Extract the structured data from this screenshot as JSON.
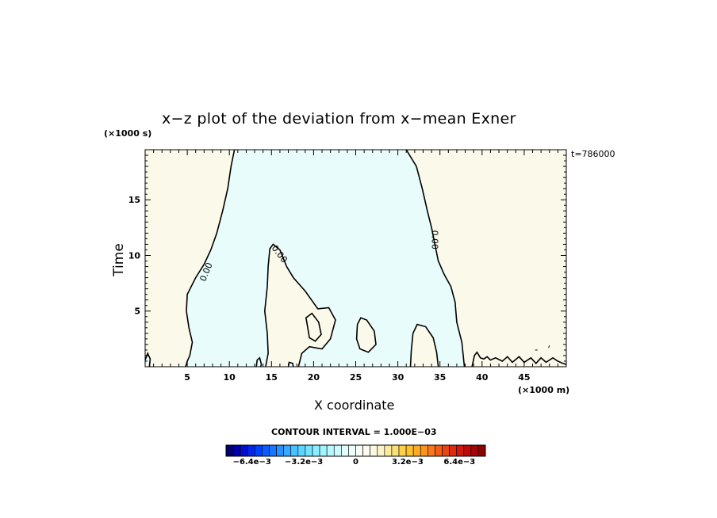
{
  "chart_data": {
    "type": "contour",
    "title": "x−z plot of the deviation from x−mean Exner",
    "xlabel": "X coordinate",
    "ylabel": "Time",
    "x_unit": "(×1000 m)",
    "y_unit": "(×1000 s)",
    "timestamp": "t=786000",
    "contour_interval_text": "CONTOUR INTERVAL = 1.000E−03",
    "xlim": [
      0,
      50
    ],
    "ylim": [
      0,
      19.5
    ],
    "x_ticks": [
      5,
      10,
      15,
      20,
      25,
      30,
      35,
      40,
      45
    ],
    "y_ticks": [
      5,
      10,
      15
    ],
    "contour_label": "0.00",
    "regions": {
      "positive_color": "#fbf9ea",
      "negative_color": "#e8fcfc"
    },
    "colorbar": {
      "min": -0.008,
      "max": 0.008,
      "colors": [
        "#00007a",
        "#0000a8",
        "#0010d0",
        "#0028ec",
        "#0040ff",
        "#0a5cff",
        "#1a78ff",
        "#2a92ff",
        "#3aaaff",
        "#4ac2ff",
        "#5cd6ff",
        "#72e4ff",
        "#8aeeff",
        "#a2f4ff",
        "#baf8ff",
        "#cefafe",
        "#e0fcfc",
        "#ecfdfb",
        "#f6fcf6",
        "#fafaee",
        "#fbf8e2",
        "#fcf2c8",
        "#fcea9e",
        "#fce074",
        "#fcd24a",
        "#fcc030",
        "#fcaa28",
        "#fc9222",
        "#f8781e",
        "#f05e1a",
        "#e84416",
        "#de2c12",
        "#d0180e",
        "#bc0a0a",
        "#a20606",
        "#860404"
      ],
      "labels": [
        "−6.4e−3",
        "−3.2e−3",
        "0",
        "3.2e−3",
        "6.4e−3"
      ],
      "label_values": [
        -0.0064,
        -0.0032,
        0,
        0.0032,
        0.0064
      ]
    },
    "zero_contours": [
      [
        [
          10.6,
          19.5
        ],
        [
          10.2,
          18
        ],
        [
          9.8,
          16
        ],
        [
          9.2,
          14
        ],
        [
          8.5,
          12
        ],
        [
          7.8,
          10.5
        ],
        [
          7,
          9.2
        ],
        [
          6,
          8
        ],
        [
          5,
          6.5
        ],
        [
          4.9,
          5
        ],
        [
          5.2,
          3.5
        ],
        [
          5.6,
          2.2
        ],
        [
          5.3,
          1
        ],
        [
          5,
          0.5
        ],
        [
          4.8,
          0
        ]
      ],
      [
        [
          31,
          19.5
        ],
        [
          32.2,
          18
        ],
        [
          32.9,
          16
        ],
        [
          33.5,
          14
        ],
        [
          34,
          12.5
        ],
        [
          34.4,
          11
        ],
        [
          34.8,
          9.5
        ],
        [
          35.5,
          8.3
        ],
        [
          36.3,
          7.2
        ],
        [
          36.8,
          5.8
        ],
        [
          37,
          4
        ],
        [
          37.6,
          2.2
        ],
        [
          37.9,
          0
        ]
      ],
      [
        [
          14.3,
          0
        ],
        [
          14.6,
          1.2
        ],
        [
          14.5,
          3
        ],
        [
          14.2,
          5
        ],
        [
          14.5,
          7.2
        ],
        [
          14.6,
          9
        ],
        [
          14.8,
          10.6
        ],
        [
          15.2,
          11
        ],
        [
          16,
          10.5
        ],
        [
          16.8,
          9
        ],
        [
          17.6,
          8
        ],
        [
          19,
          6.8
        ],
        [
          20.5,
          5.2
        ],
        [
          21.8,
          5.3
        ],
        [
          22.6,
          4.2
        ],
        [
          22,
          2.5
        ],
        [
          21,
          1.6
        ],
        [
          19.5,
          1.8
        ],
        [
          18.6,
          1.2
        ],
        [
          18.2,
          0
        ]
      ],
      [
        [
          19.3,
          3.5
        ],
        [
          19.1,
          4.4
        ],
        [
          19.8,
          4.8
        ],
        [
          20.6,
          4
        ],
        [
          20.9,
          2.9
        ],
        [
          20.2,
          2.3
        ],
        [
          19.5,
          2.6
        ],
        [
          19.3,
          3.5
        ]
      ],
      [
        [
          25.2,
          3.8
        ],
        [
          25.6,
          4.4
        ],
        [
          26.3,
          4.2
        ],
        [
          27.2,
          3.2
        ],
        [
          27.4,
          2
        ],
        [
          26.5,
          1.3
        ],
        [
          25.5,
          1.6
        ],
        [
          25.1,
          2.5
        ],
        [
          25.2,
          3.8
        ]
      ],
      [
        [
          31.5,
          0
        ],
        [
          31.6,
          1.5
        ],
        [
          31.8,
          3
        ],
        [
          32.3,
          3.8
        ],
        [
          33.3,
          3.6
        ],
        [
          34.2,
          2.6
        ],
        [
          34.6,
          1.3
        ],
        [
          34.8,
          0
        ]
      ],
      [
        [
          0,
          0.6
        ],
        [
          0.3,
          1.2
        ],
        [
          0.6,
          0.7
        ],
        [
          0.5,
          0
        ]
      ],
      [
        [
          13.2,
          0
        ],
        [
          13.3,
          0.6
        ],
        [
          13.6,
          0.8
        ],
        [
          13.8,
          0.2
        ],
        [
          13.7,
          0
        ]
      ],
      [
        [
          17.0,
          0
        ],
        [
          17.1,
          0.4
        ],
        [
          17.5,
          0.3
        ],
        [
          17.6,
          0
        ]
      ],
      [
        [
          38.8,
          0
        ],
        [
          39.1,
          1.0
        ],
        [
          39.4,
          1.3
        ],
        [
          39.8,
          0.8
        ],
        [
          40.2,
          0.7
        ],
        [
          40.6,
          0.9
        ],
        [
          41.0,
          0.6
        ],
        [
          41.6,
          0.8
        ],
        [
          42.4,
          0.5
        ],
        [
          43.0,
          0.9
        ],
        [
          43.6,
          0.4
        ],
        [
          44.4,
          0.9
        ],
        [
          45,
          0.4
        ],
        [
          45.8,
          0.8
        ],
        [
          46.4,
          0.3
        ],
        [
          47,
          0.8
        ],
        [
          47.6,
          0.4
        ],
        [
          48.4,
          0.8
        ],
        [
          49,
          0.5
        ],
        [
          49.6,
          0.3
        ],
        [
          50,
          0.2
        ]
      ]
    ],
    "contour_label_positions": [
      [
        7.3,
        8.5
      ],
      [
        15.9,
        10.1
      ],
      [
        34.3,
        11.4
      ]
    ]
  }
}
